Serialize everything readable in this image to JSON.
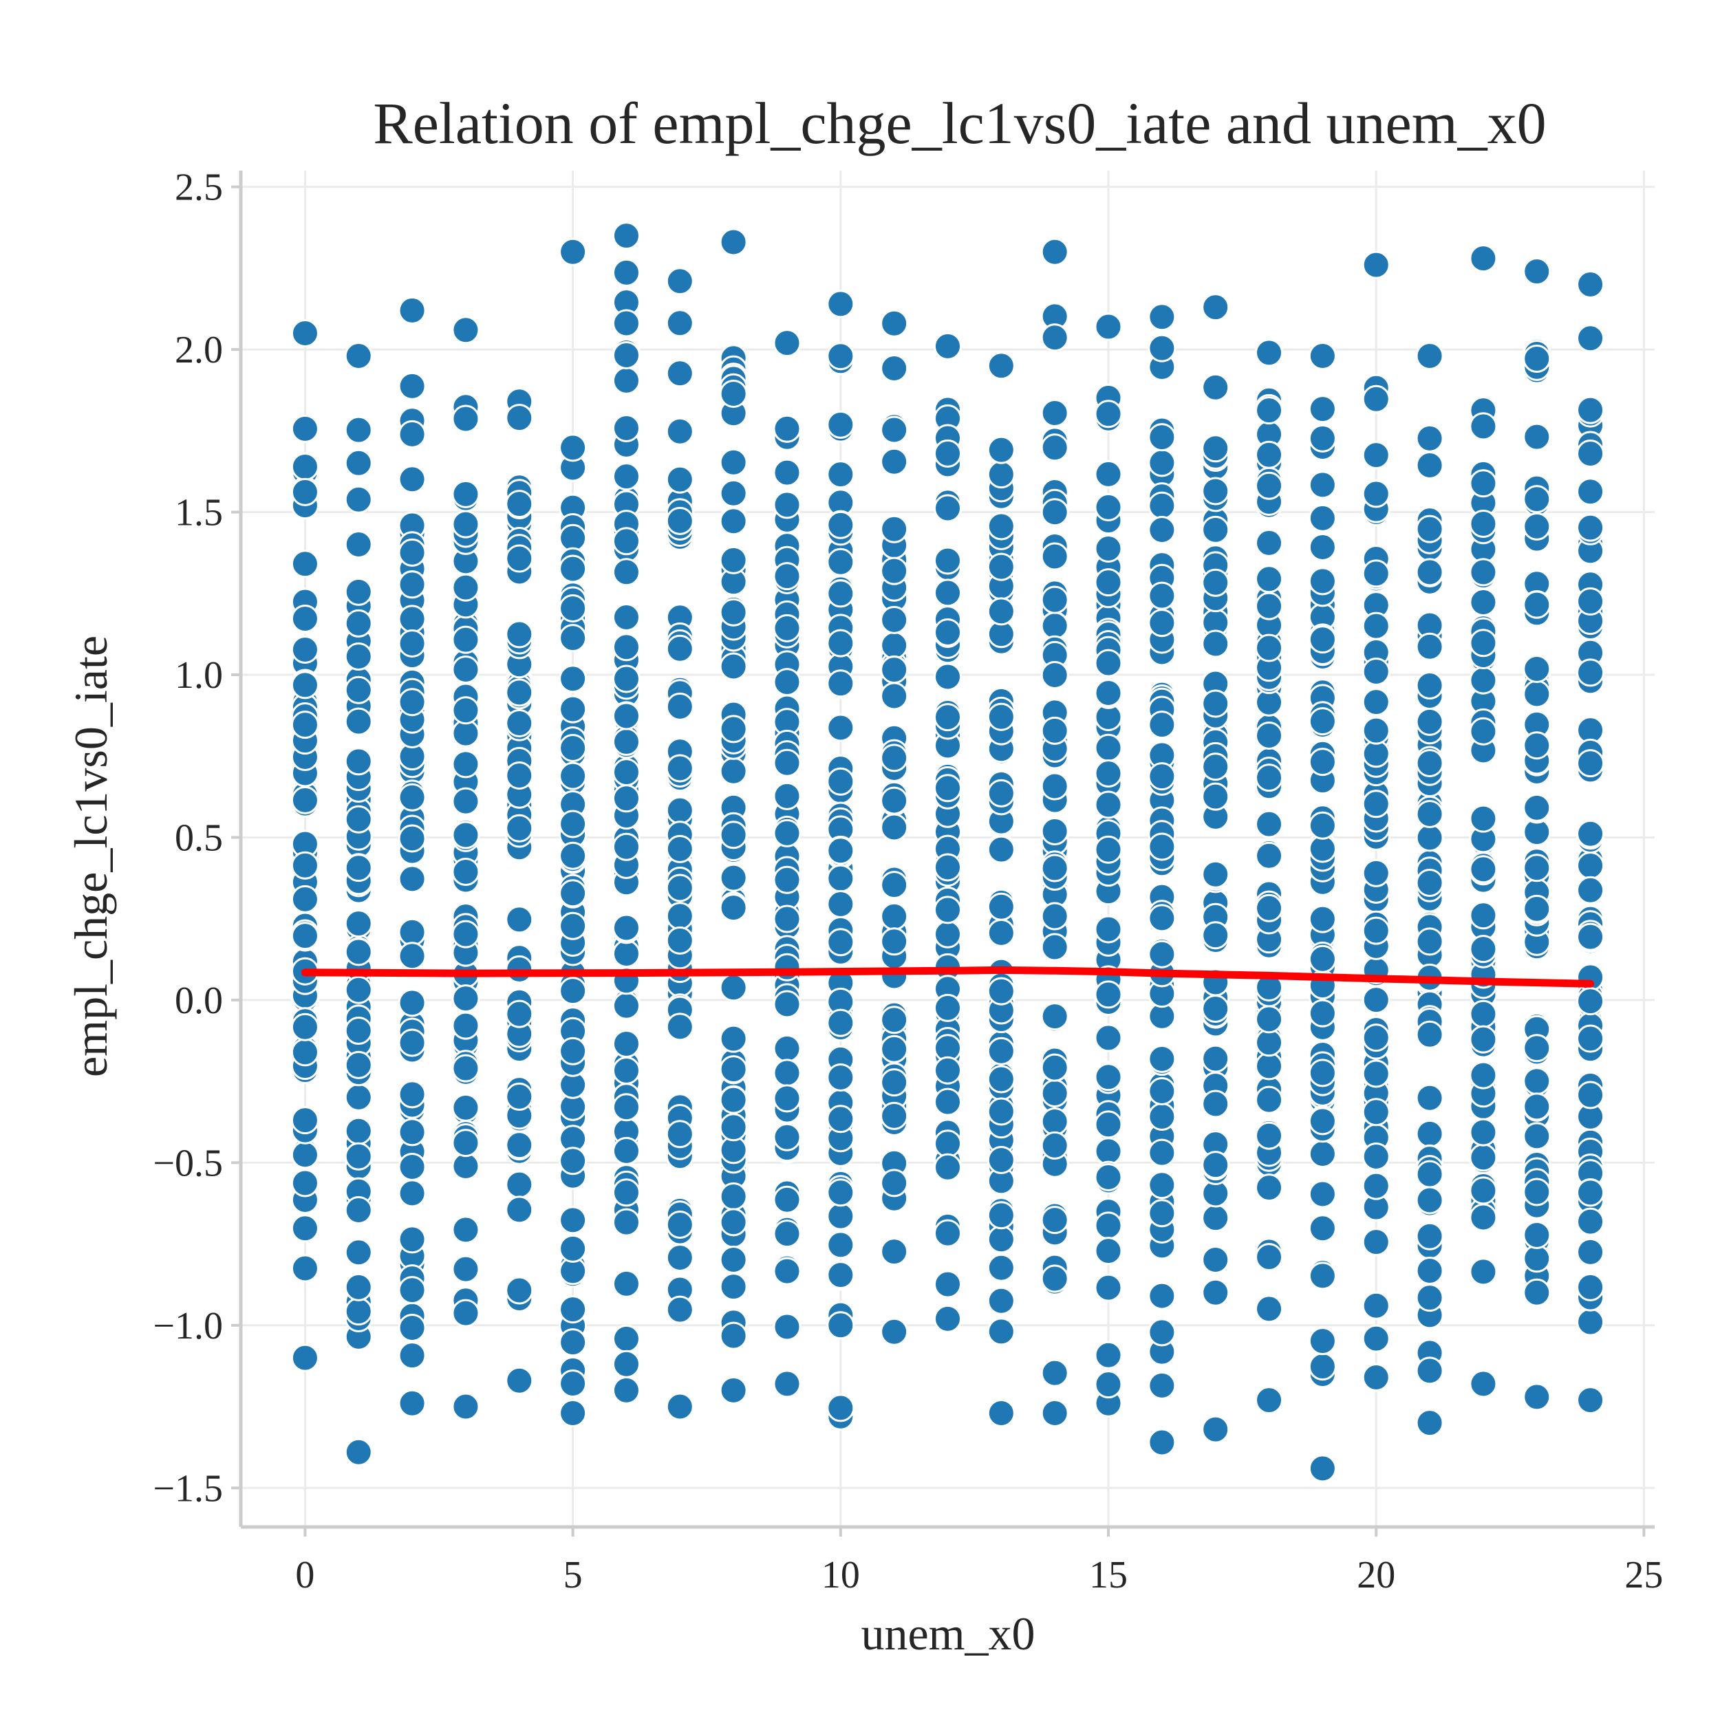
{
  "chart_data": {
    "type": "scatter",
    "title": "Relation of empl_chge_lc1vs0_iate and unem_x0",
    "xlabel": "unem_x0",
    "ylabel": "empl_chge_lc1vs0_iate",
    "xlim": [
      -1.2,
      25.2
    ],
    "ylim": [
      -1.62,
      2.55
    ],
    "xticks": [
      0,
      5,
      10,
      15,
      20,
      25
    ],
    "yticks": [
      -1.5,
      -1.0,
      -0.5,
      0.0,
      0.5,
      1.0,
      1.5,
      2.0,
      2.5
    ],
    "xtick_labels": [
      "0",
      "5",
      "10",
      "15",
      "20",
      "25"
    ],
    "ytick_labels": [
      "−1.5",
      "−1.0",
      "−0.5",
      "0.0",
      "0.5",
      "1.0",
      "1.5",
      "2.0",
      "2.5"
    ],
    "grid": true,
    "point_color": "#1f77b4",
    "line_color": "#ff0000",
    "columns": [
      {
        "x": 0,
        "min": -1.1,
        "max": 2.05
      },
      {
        "x": 1,
        "min": -1.39,
        "max": 1.98
      },
      {
        "x": 2,
        "min": -1.24,
        "max": 2.12
      },
      {
        "x": 3,
        "min": -1.25,
        "max": 2.06
      },
      {
        "x": 4,
        "min": -1.17,
        "max": 1.84
      },
      {
        "x": 5,
        "min": -1.27,
        "max": 2.3
      },
      {
        "x": 6,
        "min": -1.2,
        "max": 2.35
      },
      {
        "x": 7,
        "min": -1.25,
        "max": 2.21
      },
      {
        "x": 8,
        "min": -1.2,
        "max": 2.33
      },
      {
        "x": 9,
        "min": -1.18,
        "max": 2.02
      },
      {
        "x": 10,
        "min": -1.28,
        "max": 2.14
      },
      {
        "x": 11,
        "min": -1.02,
        "max": 2.08
      },
      {
        "x": 12,
        "min": -0.98,
        "max": 2.01
      },
      {
        "x": 13,
        "min": -1.27,
        "max": 1.95
      },
      {
        "x": 14,
        "min": -1.27,
        "max": 2.3
      },
      {
        "x": 15,
        "min": -1.24,
        "max": 2.07
      },
      {
        "x": 16,
        "min": -1.36,
        "max": 2.1
      },
      {
        "x": 17,
        "min": -1.32,
        "max": 2.13
      },
      {
        "x": 18,
        "min": -1.23,
        "max": 1.99
      },
      {
        "x": 19,
        "min": -1.44,
        "max": 1.98
      },
      {
        "x": 20,
        "min": -1.16,
        "max": 2.26
      },
      {
        "x": 21,
        "min": -1.3,
        "max": 1.98
      },
      {
        "x": 22,
        "min": -1.18,
        "max": 2.28
      },
      {
        "x": 23,
        "min": -1.22,
        "max": 2.24
      },
      {
        "x": 24,
        "min": -1.23,
        "max": 2.2
      }
    ],
    "points_per_column": 70,
    "trend_line": {
      "x": [
        0,
        3,
        6,
        9,
        12,
        13,
        14,
        15,
        16,
        18,
        20,
        22,
        24
      ],
      "y": [
        0.085,
        0.082,
        0.083,
        0.086,
        0.09,
        0.092,
        0.09,
        0.087,
        0.082,
        0.075,
        0.066,
        0.057,
        0.05
      ]
    }
  }
}
